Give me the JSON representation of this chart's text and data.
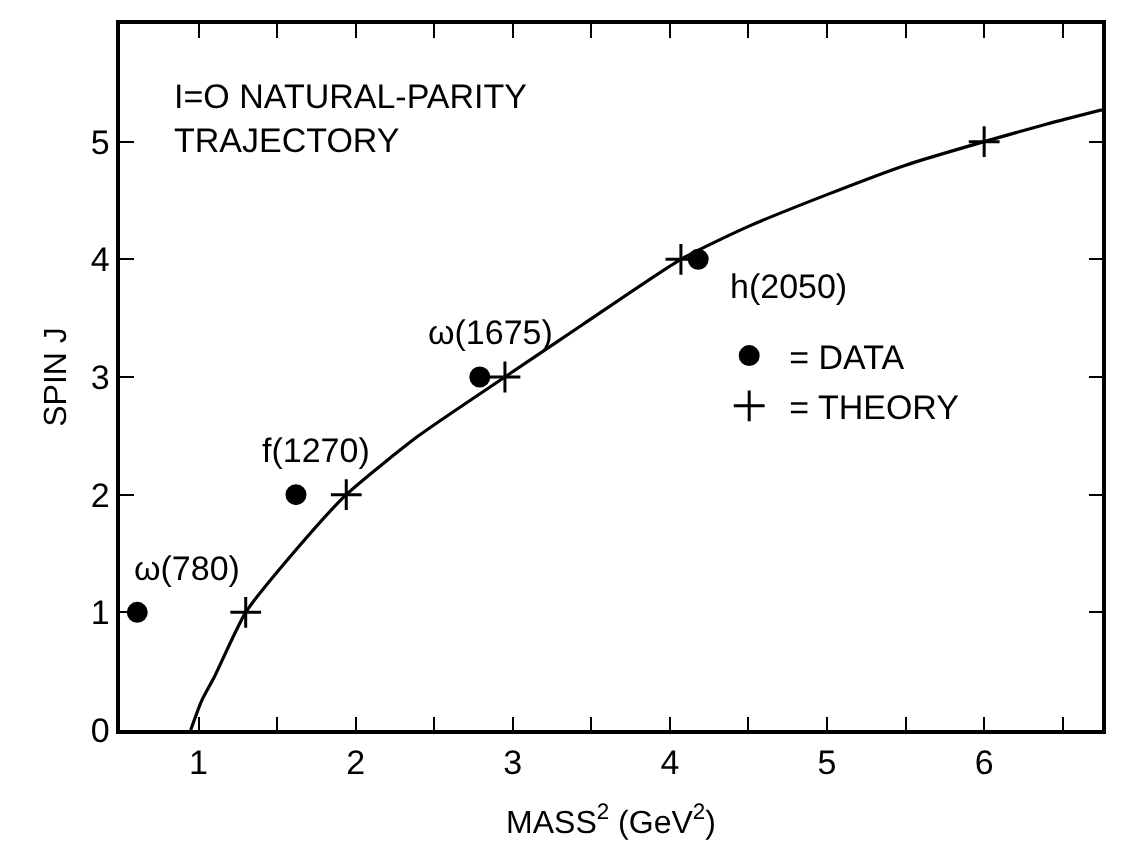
{
  "chart_data": {
    "type": "scatter",
    "title": "I=O NATURAL-PARITY\nTRAJECTORY",
    "xlabel": "MASS$^{2}$ (GeV$^{2}$)",
    "ylabel": "SPIN J",
    "series": [
      {
        "name": "= DATA",
        "marker": "circle",
        "color": "#000000",
        "x": [
          0.61,
          1.62,
          2.79,
          4.18
        ],
        "values": [
          1,
          2,
          3,
          4
        ]
      },
      {
        "name": "= THEORY",
        "marker": "cross",
        "color": "#000000",
        "x": [
          1.3,
          1.94,
          2.95,
          4.07,
          6.0
        ],
        "values": [
          1,
          2,
          3,
          4,
          5
        ]
      },
      {
        "type": "line",
        "marker": "none",
        "color": "#000000",
        "x": [
          0.95,
          1.02,
          1.1,
          1.3,
          1.6,
          1.94,
          2.4,
          2.95,
          3.45,
          4.07,
          4.5,
          5.0,
          5.5,
          6.0,
          6.4,
          6.75
        ],
        "values": [
          0,
          0.25,
          0.45,
          1,
          1.5,
          2,
          2.5,
          3,
          3.45,
          4,
          4.28,
          4.55,
          4.8,
          5,
          5.15,
          5.27
        ]
      }
    ],
    "annotations": [
      {
        "text": "ω(780)",
        "x": 0.61,
        "y": 1
      },
      {
        "text": "f(1270)",
        "x": 1.62,
        "y": 2
      },
      {
        "text": "ω(1675)",
        "x": 2.79,
        "y": 3
      },
      {
        "text": "h(2050)",
        "x": 4.18,
        "y": 4
      }
    ],
    "xlim": [
      0.5,
      6.75
    ],
    "xticks": [
      1,
      {
        "value": 1.5,
        "label": null
      },
      2,
      {
        "value": 2.5,
        "label": null
      },
      3,
      {
        "value": 3.5,
        "label": null
      },
      4,
      {
        "value": 4.5,
        "label": null
      },
      5,
      {
        "value": 5.5,
        "label": null
      },
      6,
      {
        "value": 6.5,
        "label": null
      }
    ],
    "ylim": [
      0,
      6
    ],
    "yticks": [
      0,
      1,
      2,
      3,
      4,
      5
    ],
    "legend": "right"
  }
}
